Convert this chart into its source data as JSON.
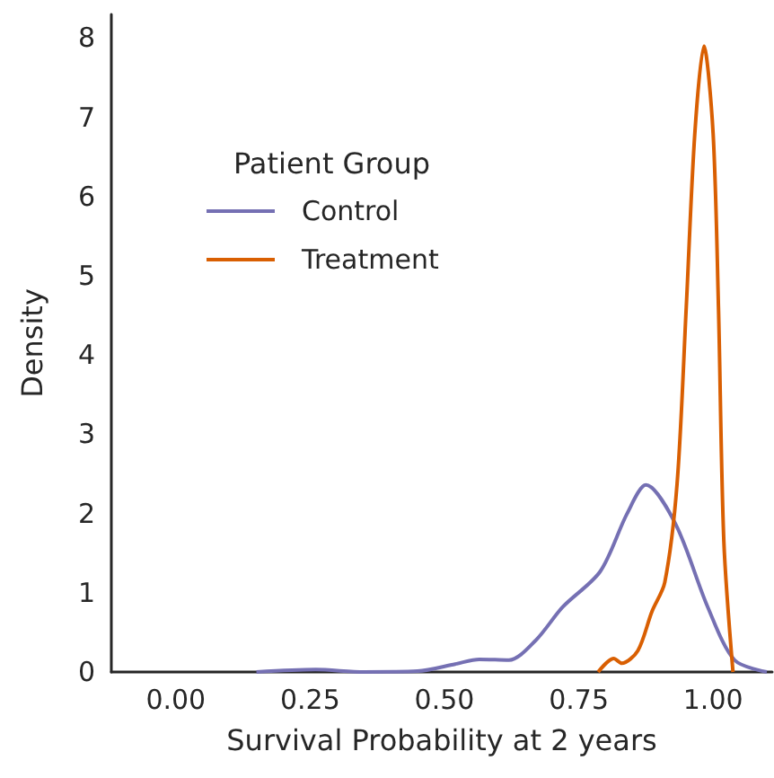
{
  "chart_data": {
    "type": "line",
    "xlabel": "Survival Probability at 2 years",
    "ylabel": "Density",
    "legend_title": "Patient Group",
    "legend": "top left",
    "grid": false,
    "marker": "none",
    "line_style": "solid",
    "xlim": [
      -0.12,
      1.11
    ],
    "xticks": [
      {
        "value": 0,
        "label": "0.00"
      },
      {
        "value": 0.25,
        "label": "0.25"
      },
      {
        "value": 0.5,
        "label": "0.50"
      },
      {
        "value": 0.75,
        "label": "0.75"
      },
      {
        "value": 1,
        "label": "1.00"
      }
    ],
    "ylim": [
      0,
      8.3
    ],
    "yticks": [
      0,
      1,
      2,
      3,
      4,
      5,
      6,
      7,
      8
    ],
    "series": [
      {
        "name": "Control",
        "color": "#7570b3",
        "x": [
          0.15,
          0.26,
          0.35,
          0.45,
          0.52,
          0.565,
          0.62,
          0.67,
          0.72,
          0.79,
          0.84,
          0.875,
          0.93,
          0.99,
          1.04,
          1.1
        ],
        "values": [
          0,
          0.03,
          0,
          0.01,
          0.1,
          0.16,
          0.15,
          0.4,
          0.82,
          1.27,
          2.0,
          2.36,
          1.87,
          0.82,
          0.15,
          0
        ]
      },
      {
        "name": "Treatment",
        "color": "#d95f02",
        "x": [
          0.786,
          0.815,
          0.83,
          0.86,
          0.886,
          0.91,
          0.933,
          0.95,
          0.966,
          0.983,
          1.0,
          1.01,
          1.02,
          1.037
        ],
        "values": [
          0,
          0.17,
          0.11,
          0.27,
          0.76,
          1.13,
          2.38,
          4.6,
          6.8,
          7.9,
          6.8,
          4.6,
          1.65,
          0
        ]
      }
    ]
  }
}
